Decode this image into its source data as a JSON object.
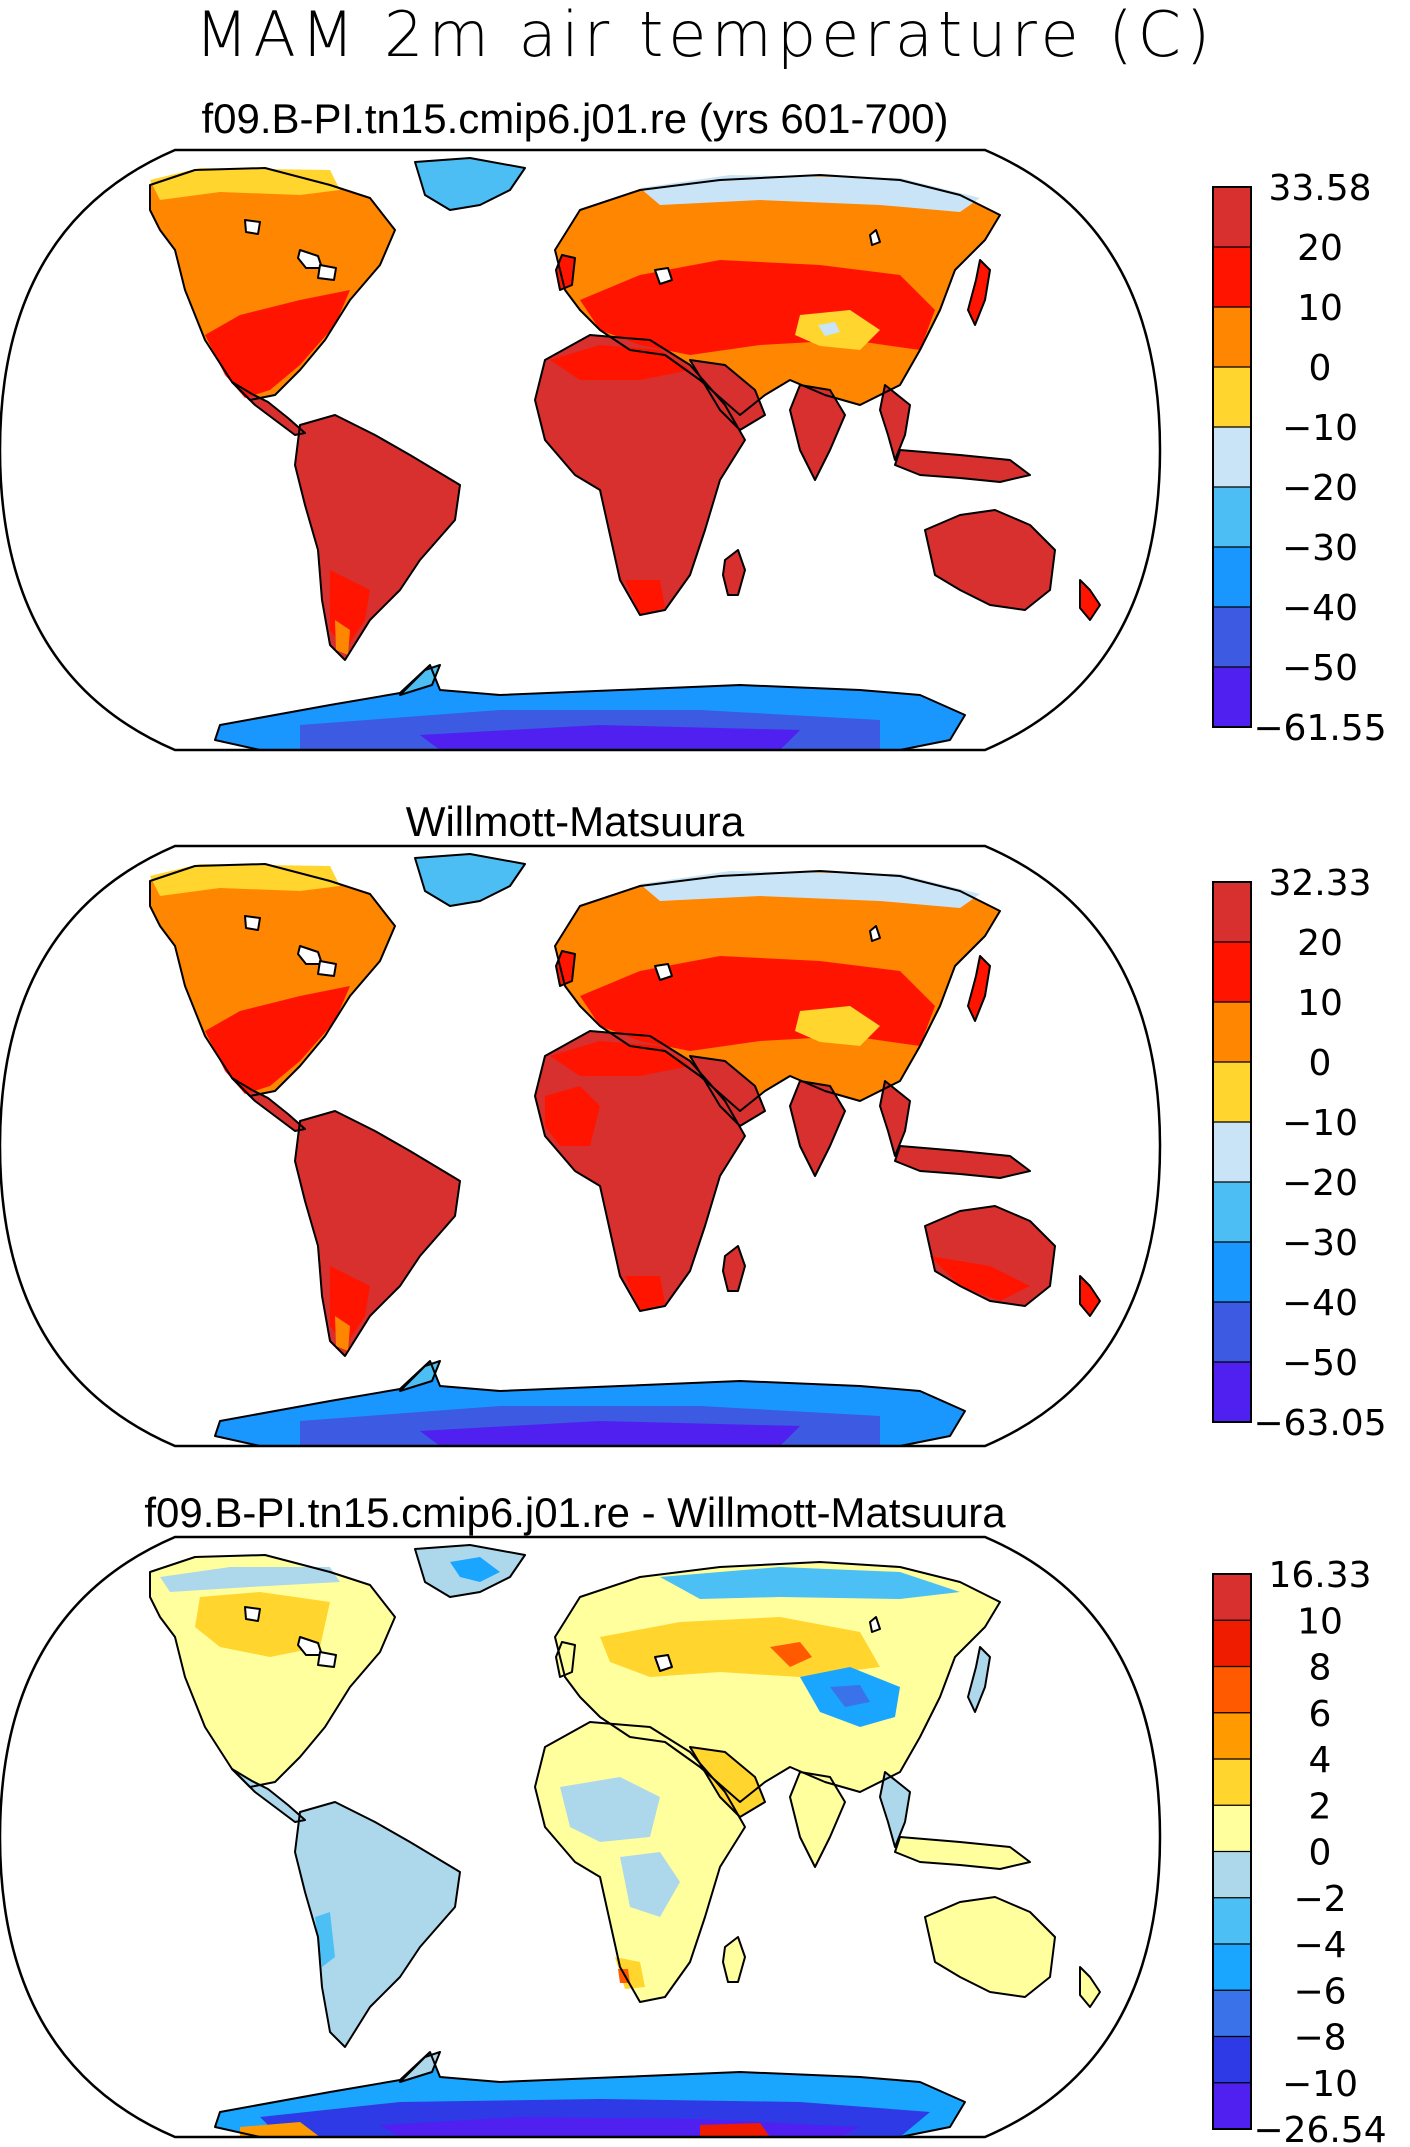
{
  "title": "MAM 2m air temperature (C)",
  "panels": [
    {
      "title": "f09.B-PI.tn15.cmip6.j01.re (yrs 601-700)",
      "colorbar": {
        "colors": [
          "#5020f0",
          "#3c5ae2",
          "#1a96ff",
          "#4cbef4",
          "#c8e4f6",
          "#ffd52e",
          "#ff8600",
          "#ff1400",
          "#d7302f"
        ],
        "labels": [
          "−61.55",
          "−50",
          "−40",
          "−30",
          "−20",
          "−10",
          "0",
          "10",
          "20",
          "33.58"
        ]
      }
    },
    {
      "title": "Willmott-Matsuura",
      "colorbar": {
        "colors": [
          "#5020f0",
          "#3c5ae2",
          "#1a96ff",
          "#4cbef4",
          "#c8e4f6",
          "#ffd52e",
          "#ff8600",
          "#ff1400",
          "#d7302f"
        ],
        "labels": [
          "−63.05",
          "−50",
          "−40",
          "−30",
          "−20",
          "−10",
          "0",
          "10",
          "20",
          "32.33"
        ]
      }
    },
    {
      "title": "f09.B-PI.tn15.cmip6.j01.re - Willmott-Matsuura",
      "colorbar": {
        "colors": [
          "#5020f0",
          "#2d3ae6",
          "#3a72ea",
          "#1aa6ff",
          "#4cc0f4",
          "#add8ec",
          "#ffff9e",
          "#ffd52e",
          "#ff9a00",
          "#ff5a00",
          "#f01c00",
          "#d7302f"
        ],
        "labels": [
          "−26.54",
          "−10",
          "−8",
          "−6",
          "−4",
          "−2",
          "0",
          "2",
          "4",
          "6",
          "8",
          "10",
          "16.33"
        ]
      }
    }
  ]
}
